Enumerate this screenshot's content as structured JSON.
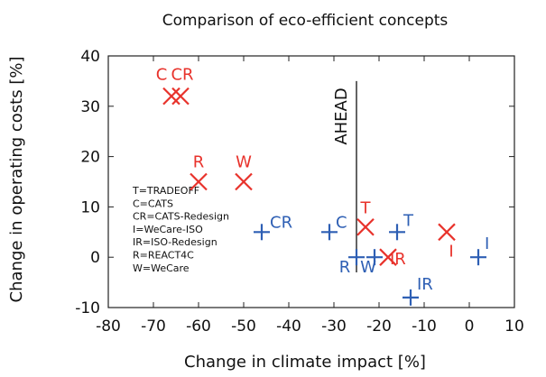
{
  "chart_data": {
    "type": "scatter",
    "title": "Comparison of eco-efficient concepts",
    "xlabel": "Change in climate impact [%]",
    "ylabel": "Change in operating costs [%]",
    "xlim": [
      -80,
      10
    ],
    "ylim": [
      -10,
      40
    ],
    "xticks": [
      -80,
      -70,
      -60,
      -50,
      -40,
      -30,
      -20,
      -10,
      0,
      10
    ],
    "yticks": [
      -10,
      0,
      10,
      20,
      30,
      40
    ],
    "grid": false,
    "reference_line": {
      "x": -25,
      "y_from": -3,
      "y_to": 35,
      "label": "AHEAD"
    },
    "legend_entries": [
      "T=TRADEOFF",
      "C=CATS",
      "CR=CATS-Redesign",
      "I=WeCare-ISO",
      "IR=ISO-Redesign",
      "R=REACT4C",
      "W=WeCare"
    ],
    "colors": {
      "cross": "#e8322b",
      "plus": "#2e5fb4"
    },
    "series": [
      {
        "marker": "x",
        "points": [
          {
            "x": -66,
            "y": 32,
            "label": "C"
          },
          {
            "x": -64,
            "y": 32,
            "label": "CR"
          },
          {
            "x": -60,
            "y": 15,
            "label": "R"
          },
          {
            "x": -50,
            "y": 15,
            "label": "W"
          },
          {
            "x": -23,
            "y": 6,
            "label": "T"
          },
          {
            "x": -18,
            "y": 0,
            "label": "IR"
          },
          {
            "x": -5,
            "y": 5,
            "label": "I"
          }
        ]
      },
      {
        "marker": "plus",
        "points": [
          {
            "x": -46,
            "y": 5,
            "label": "CR"
          },
          {
            "x": -31,
            "y": 5,
            "label": "C"
          },
          {
            "x": -25,
            "y": 0,
            "label": "R"
          },
          {
            "x": -21,
            "y": 0,
            "label": "W"
          },
          {
            "x": -16,
            "y": 5,
            "label": "T"
          },
          {
            "x": -13,
            "y": -8,
            "label": "IR"
          },
          {
            "x": 2,
            "y": 0,
            "label": "I"
          }
        ]
      }
    ]
  }
}
